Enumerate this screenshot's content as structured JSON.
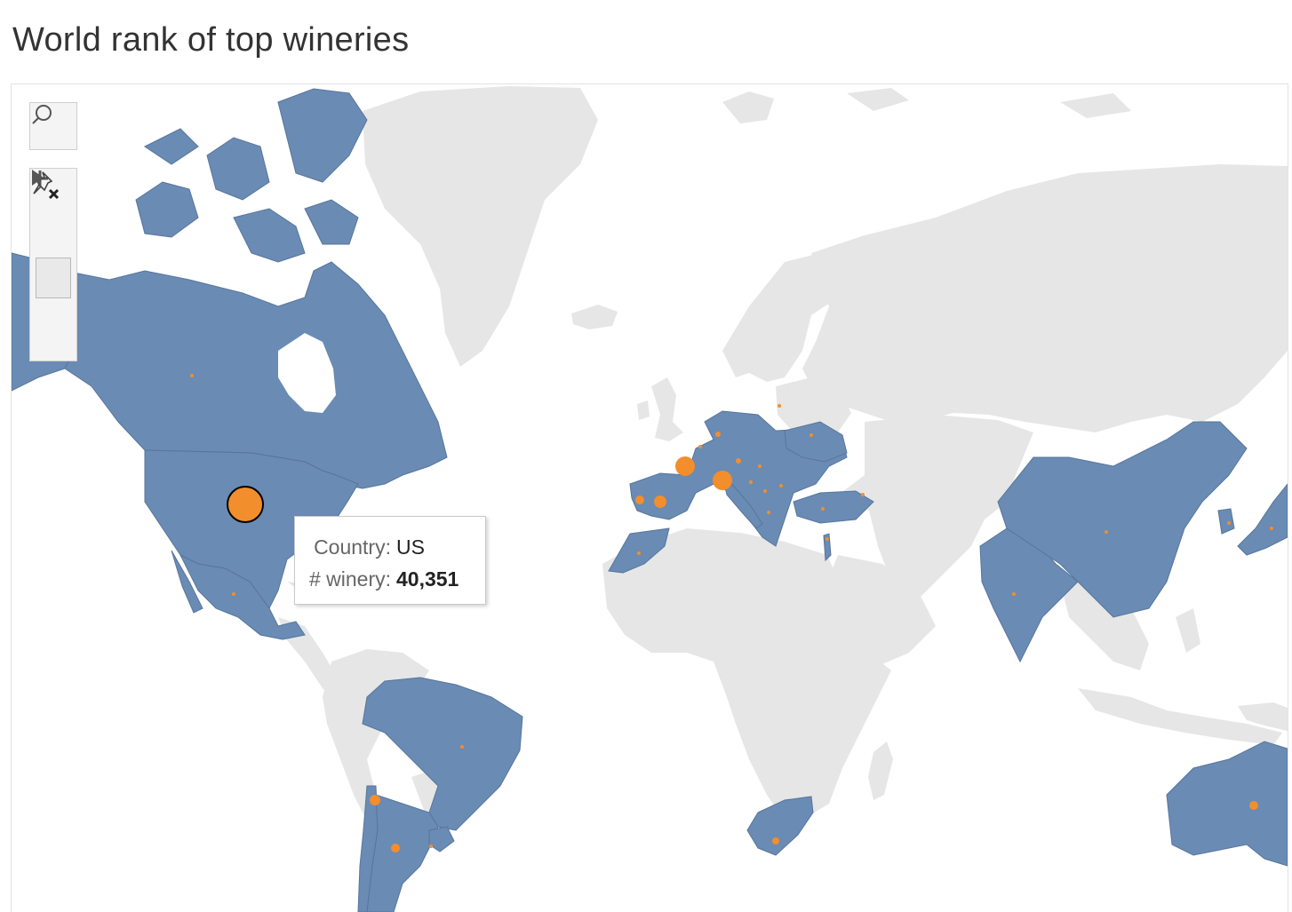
{
  "title": "World rank of top wineries",
  "colors": {
    "highlighted_country": "#6a8bb3",
    "other_land": "#e6e6e6",
    "ocean": "#ffffff",
    "marker": "#f28e2b",
    "marker_selected_outline": "#000000"
  },
  "toolbar": {
    "search_icon": "search-icon",
    "zoom_in_icon": "plus-icon",
    "zoom_out_icon": "minus-icon",
    "pin_icon": "unpin-map-icon",
    "expand_icon": "triangle-right-icon"
  },
  "tooltip": {
    "country_label": "Country:",
    "country_value": "US",
    "winery_label": "# winery:",
    "winery_value": "40,351"
  },
  "markers": [
    {
      "country": "US",
      "size": "large",
      "selected": true
    },
    {
      "country": "Italy",
      "size": "medium"
    },
    {
      "country": "France",
      "size": "medium"
    },
    {
      "country": "Spain",
      "size": "small"
    },
    {
      "country": "Portugal",
      "size": "tiny"
    },
    {
      "country": "Chile",
      "size": "small"
    },
    {
      "country": "Argentina",
      "size": "small"
    },
    {
      "country": "Australia",
      "size": "small"
    },
    {
      "country": "Canada",
      "size": "tiny"
    },
    {
      "country": "Mexico",
      "size": "tiny"
    },
    {
      "country": "Brazil",
      "size": "tiny"
    },
    {
      "country": "Uruguay",
      "size": "tiny"
    },
    {
      "country": "South Africa",
      "size": "small"
    },
    {
      "country": "Germany",
      "size": "tiny"
    },
    {
      "country": "Austria",
      "size": "tiny"
    },
    {
      "country": "China",
      "size": "tiny"
    },
    {
      "country": "India",
      "size": "tiny"
    },
    {
      "country": "Turkey",
      "size": "tiny"
    },
    {
      "country": "Greece",
      "size": "tiny"
    },
    {
      "country": "Hungary",
      "size": "tiny"
    },
    {
      "country": "Ukraine",
      "size": "tiny"
    },
    {
      "country": "Morocco",
      "size": "tiny"
    },
    {
      "country": "Japan",
      "size": "tiny"
    },
    {
      "country": "South Korea",
      "size": "tiny"
    },
    {
      "country": "Israel",
      "size": "tiny"
    }
  ]
}
